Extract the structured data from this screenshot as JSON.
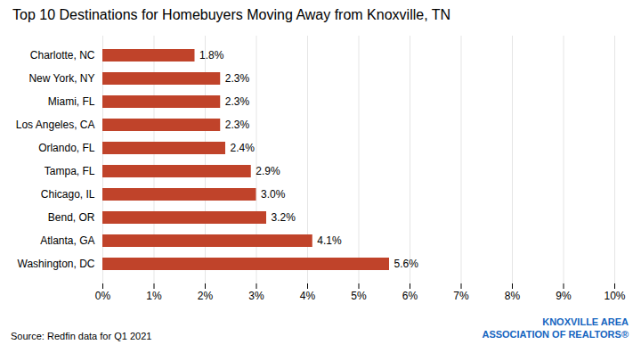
{
  "chart_data": {
    "type": "bar",
    "orientation": "horizontal",
    "title": "Top 10 Destinations for Homebuyers Moving Away from Knoxville, TN",
    "categories": [
      "Washington, DC",
      "Atlanta, GA",
      "Bend, OR",
      "Chicago, IL",
      "Tampa, FL",
      "Orlando, FL",
      "Los Angeles, CA",
      "Miami, FL",
      "New York, NY",
      "Charlotte, NC"
    ],
    "values": [
      5.6,
      4.1,
      3.2,
      3.0,
      2.9,
      2.4,
      2.3,
      2.3,
      2.3,
      1.8
    ],
    "value_labels": [
      "5.6%",
      "4.1%",
      "3.2%",
      "3.0%",
      "2.9%",
      "2.4%",
      "2.3%",
      "2.3%",
      "2.3%",
      "1.8%"
    ],
    "data_labels": true,
    "color": "#C0432A",
    "xlim": [
      0,
      10
    ],
    "xticks": [
      {
        "value": 0,
        "label": "0%"
      },
      {
        "value": 1,
        "label": "1%"
      },
      {
        "value": 2,
        "label": "2%"
      },
      {
        "value": 3,
        "label": "3%"
      },
      {
        "value": 4,
        "label": "4%"
      },
      {
        "value": 5,
        "label": "5%"
      },
      {
        "value": 6,
        "label": "6%"
      },
      {
        "value": 7,
        "label": "7%"
      },
      {
        "value": 8,
        "label": "8%"
      },
      {
        "value": 9,
        "label": "9%"
      },
      {
        "value": 10,
        "label": "10%"
      }
    ],
    "grid": true,
    "annotations": [
      {
        "text": "Source: Redfin data for Q1 2021"
      },
      {
        "text": "KNOXVILLE AREA",
        "color": "#1565C0"
      },
      {
        "text": "ASSOCIATION OF REALTORS®",
        "color": "#1565C0"
      }
    ]
  }
}
